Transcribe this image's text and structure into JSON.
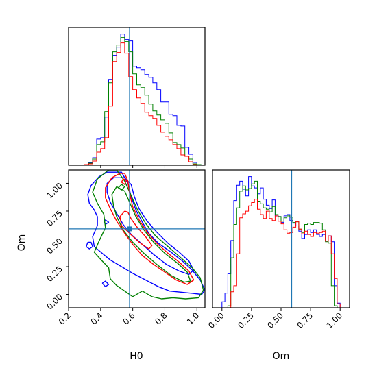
{
  "chart_data": {
    "type": "corner",
    "parameters": [
      "H0",
      "Om"
    ],
    "truths": {
      "H0": 0.58,
      "Om": 0.59
    },
    "truth_color": "#1f77b4",
    "series": [
      {
        "color": "#0000ff"
      },
      {
        "color": "#008000"
      },
      {
        "color": "#ff0000"
      }
    ],
    "hist_H0": {
      "type": "step-histogram",
      "edges": [
        0.3,
        0.325,
        0.35,
        0.375,
        0.4,
        0.425,
        0.45,
        0.475,
        0.5,
        0.525,
        0.55,
        0.575,
        0.6,
        0.625,
        0.65,
        0.675,
        0.7,
        0.725,
        0.75,
        0.775,
        0.8,
        0.825,
        0.85,
        0.875,
        0.9,
        0.925,
        0.95,
        0.975,
        1.0,
        1.025
      ],
      "series_counts": [
        [
          1,
          4,
          11,
          38,
          40,
          70,
          125,
          160,
          172,
          191,
          183,
          181,
          144,
          142,
          139,
          132,
          128,
          120,
          110,
          92,
          92,
          74,
          72,
          58,
          57,
          26,
          16,
          4,
          1
        ],
        [
          1,
          3,
          9,
          30,
          34,
          78,
          120,
          165,
          175,
          186,
          180,
          165,
          133,
          117,
          113,
          102,
          89,
          79,
          73,
          66,
          61,
          47,
          33,
          30,
          25,
          13,
          9,
          2,
          1
        ],
        [
          1,
          2,
          6,
          19,
          24,
          40,
          86,
          151,
          164,
          178,
          163,
          129,
          110,
          98,
          90,
          77,
          72,
          68,
          58,
          48,
          42,
          37,
          30,
          24,
          15,
          13,
          5,
          1,
          0
        ]
      ],
      "xlim": [
        0.2,
        1.05
      ],
      "x_ticks": [
        0.4,
        0.6,
        0.8,
        1.0
      ]
    },
    "hist_Om": {
      "type": "step-histogram",
      "edges": [
        0.0,
        0.025,
        0.05,
        0.075,
        0.1,
        0.125,
        0.15,
        0.175,
        0.2,
        0.225,
        0.25,
        0.275,
        0.3,
        0.325,
        0.35,
        0.375,
        0.4,
        0.425,
        0.45,
        0.475,
        0.5,
        0.525,
        0.55,
        0.575,
        0.6,
        0.625,
        0.65,
        0.675,
        0.7,
        0.725,
        0.75,
        0.775,
        0.8,
        0.825,
        0.85,
        0.875,
        0.9,
        0.925,
        0.95,
        0.975,
        1.0,
        1.025,
        1.05
      ],
      "series_counts": [
        [
          9,
          22,
          51,
          101,
          161,
          184,
          190,
          178,
          168,
          197,
          183,
          180,
          171,
          180,
          163,
          154,
          149,
          162,
          138,
          137,
          128,
          138,
          140,
          131,
          127,
          123,
          115,
          104,
          110,
          117,
          113,
          117,
          110,
          107,
          110,
          100,
          108,
          99,
          33,
          7,
          0,
          0
        ],
        [
          0,
          0,
          3,
          75,
          125,
          150,
          175,
          183,
          177,
          179,
          186,
          190,
          160,
          156,
          150,
          148,
          144,
          152,
          140,
          137,
          130,
          135,
          138,
          136,
          128,
          129,
          118,
          113,
          125,
          127,
          125,
          128,
          128,
          127,
          117,
          99,
          97,
          33,
          3,
          0,
          0,
          0
        ],
        [
          0,
          0,
          0,
          24,
          33,
          81,
          135,
          141,
          145,
          153,
          158,
          163,
          148,
          140,
          134,
          145,
          134,
          131,
          138,
          130,
          126,
          117,
          112,
          113,
          121,
          129,
          118,
          111,
          115,
          110,
          107,
          113,
          112,
          113,
          115,
          100,
          108,
          81,
          44,
          6,
          0,
          0
        ]
      ],
      "xlim": [
        -0.08,
        1.08
      ],
      "x_ticks": [
        0.0,
        0.25,
        0.5,
        0.75,
        1.0
      ],
      "x_tick_labels": [
        "0.00",
        "0.25",
        "0.50",
        "0.75",
        "1.00"
      ]
    },
    "joint": {
      "type": "2d-contour",
      "x_param": "H0",
      "y_param": "Om",
      "xlim": [
        0.2,
        1.05
      ],
      "ylim": [
        -0.12,
        1.12
      ],
      "x_ticks": [
        0.2,
        0.4,
        0.6,
        0.8,
        1.0
      ],
      "x_tick_labels": [
        "0.2",
        "0.4",
        "0.6",
        "0.8",
        "1.0"
      ],
      "y_ticks": [
        0.0,
        0.25,
        0.5,
        0.75,
        1.0
      ],
      "y_tick_labels": [
        "0.00",
        "0.25",
        "0.50",
        "0.75",
        "1.00"
      ],
      "contours": [
        {
          "series": 0,
          "points": [
            [
              0.44,
              1.1
            ],
            [
              0.39,
              1.06
            ],
            [
              0.34,
              0.98
            ],
            [
              0.32,
              0.9
            ],
            [
              0.33,
              0.82
            ],
            [
              0.36,
              0.76
            ],
            [
              0.38,
              0.7
            ],
            [
              0.38,
              0.62
            ],
            [
              0.35,
              0.52
            ],
            [
              0.36,
              0.43
            ],
            [
              0.41,
              0.37
            ],
            [
              0.46,
              0.31
            ],
            [
              0.53,
              0.25
            ],
            [
              0.6,
              0.19
            ],
            [
              0.68,
              0.13
            ],
            [
              0.76,
              0.07
            ],
            [
              0.83,
              0.03
            ],
            [
              0.9,
              0.02
            ],
            [
              0.97,
              0.01
            ],
            [
              1.03,
              0.0
            ],
            [
              1.05,
              0.04
            ],
            [
              1.02,
              0.13
            ],
            [
              0.97,
              0.22
            ],
            [
              0.91,
              0.3
            ],
            [
              0.84,
              0.38
            ],
            [
              0.76,
              0.46
            ],
            [
              0.7,
              0.55
            ],
            [
              0.66,
              0.65
            ],
            [
              0.62,
              0.76
            ],
            [
              0.59,
              0.88
            ],
            [
              0.57,
              1.0
            ],
            [
              0.53,
              1.1
            ],
            [
              0.44,
              1.1
            ]
          ]
        },
        {
          "series": 0,
          "points": [
            [
              0.48,
              1.05
            ],
            [
              0.44,
              1.0
            ],
            [
              0.44,
              0.92
            ],
            [
              0.46,
              0.83
            ],
            [
              0.5,
              0.73
            ],
            [
              0.54,
              0.63
            ],
            [
              0.59,
              0.54
            ],
            [
              0.66,
              0.45
            ],
            [
              0.73,
              0.36
            ],
            [
              0.81,
              0.27
            ],
            [
              0.89,
              0.21
            ],
            [
              0.95,
              0.18
            ],
            [
              0.98,
              0.22
            ],
            [
              0.95,
              0.3
            ],
            [
              0.89,
              0.38
            ],
            [
              0.82,
              0.46
            ],
            [
              0.75,
              0.56
            ],
            [
              0.69,
              0.66
            ],
            [
              0.64,
              0.77
            ],
            [
              0.61,
              0.88
            ],
            [
              0.59,
              0.99
            ],
            [
              0.55,
              1.05
            ],
            [
              0.48,
              1.05
            ]
          ]
        },
        {
          "series": 0,
          "points": [
            [
              0.32,
              0.47
            ],
            [
              0.31,
              0.43
            ],
            [
              0.33,
              0.41
            ],
            [
              0.35,
              0.43
            ],
            [
              0.34,
              0.47
            ],
            [
              0.32,
              0.47
            ]
          ]
        },
        {
          "series": 0,
          "points": [
            [
              0.41,
              0.1
            ],
            [
              0.43,
              0.12
            ],
            [
              0.45,
              0.09
            ],
            [
              0.43,
              0.07
            ],
            [
              0.41,
              0.1
            ]
          ]
        },
        {
          "series": 0,
          "points": [
            [
              0.42,
              0.66
            ],
            [
              0.43,
              0.63
            ],
            [
              0.45,
              0.65
            ],
            [
              0.43,
              0.67
            ],
            [
              0.42,
              0.66
            ]
          ]
        },
        {
          "series": 1,
          "points": [
            [
              0.45,
              1.12
            ],
            [
              0.38,
              1.04
            ],
            [
              0.35,
              0.92
            ],
            [
              0.38,
              0.82
            ],
            [
              0.42,
              0.72
            ],
            [
              0.43,
              0.6
            ],
            [
              0.39,
              0.48
            ],
            [
              0.36,
              0.38
            ],
            [
              0.41,
              0.3
            ],
            [
              0.45,
              0.24
            ],
            [
              0.46,
              0.14
            ],
            [
              0.5,
              0.08
            ],
            [
              0.55,
              0.03
            ],
            [
              0.6,
              -0.02
            ],
            [
              0.66,
              0.03
            ],
            [
              0.72,
              -0.02
            ],
            [
              0.78,
              -0.04
            ],
            [
              0.85,
              -0.03
            ],
            [
              0.93,
              -0.04
            ],
            [
              1.01,
              -0.03
            ],
            [
              1.04,
              0.04
            ],
            [
              1.02,
              0.15
            ],
            [
              0.97,
              0.24
            ],
            [
              0.9,
              0.33
            ],
            [
              0.82,
              0.43
            ],
            [
              0.74,
              0.53
            ],
            [
              0.68,
              0.64
            ],
            [
              0.63,
              0.76
            ],
            [
              0.59,
              0.89
            ],
            [
              0.55,
              1.02
            ],
            [
              0.5,
              1.12
            ],
            [
              0.45,
              1.12
            ]
          ]
        },
        {
          "series": 1,
          "points": [
            [
              0.5,
              0.97
            ],
            [
              0.47,
              0.9
            ],
            [
              0.48,
              0.8
            ],
            [
              0.5,
              0.7
            ],
            [
              0.54,
              0.58
            ],
            [
              0.6,
              0.47
            ],
            [
              0.67,
              0.37
            ],
            [
              0.75,
              0.27
            ],
            [
              0.84,
              0.17
            ],
            [
              0.92,
              0.11
            ],
            [
              0.96,
              0.12
            ],
            [
              0.94,
              0.2
            ],
            [
              0.88,
              0.28
            ],
            [
              0.8,
              0.37
            ],
            [
              0.73,
              0.47
            ],
            [
              0.67,
              0.58
            ],
            [
              0.62,
              0.7
            ],
            [
              0.58,
              0.83
            ],
            [
              0.55,
              0.93
            ],
            [
              0.5,
              0.97
            ]
          ]
        },
        {
          "series": 1,
          "points": [
            [
              0.53,
              0.99
            ],
            [
              0.51,
              0.96
            ],
            [
              0.53,
              0.94
            ],
            [
              0.55,
              0.97
            ],
            [
              0.53,
              0.99
            ]
          ]
        },
        {
          "series": 2,
          "points": [
            [
              0.52,
              1.09
            ],
            [
              0.47,
              1.05
            ],
            [
              0.43,
              0.96
            ],
            [
              0.43,
              0.87
            ],
            [
              0.46,
              0.77
            ],
            [
              0.5,
              0.66
            ],
            [
              0.55,
              0.55
            ],
            [
              0.6,
              0.45
            ],
            [
              0.66,
              0.35
            ],
            [
              0.73,
              0.27
            ],
            [
              0.8,
              0.2
            ],
            [
              0.87,
              0.13
            ],
            [
              0.94,
              0.09
            ],
            [
              0.98,
              0.13
            ],
            [
              0.95,
              0.21
            ],
            [
              0.89,
              0.29
            ],
            [
              0.82,
              0.37
            ],
            [
              0.75,
              0.46
            ],
            [
              0.69,
              0.56
            ],
            [
              0.64,
              0.67
            ],
            [
              0.6,
              0.79
            ],
            [
              0.58,
              0.91
            ],
            [
              0.57,
              1.02
            ],
            [
              0.55,
              1.09
            ],
            [
              0.52,
              1.09
            ]
          ]
        },
        {
          "series": 2,
          "points": [
            [
              0.55,
              0.75
            ],
            [
              0.52,
              0.7
            ],
            [
              0.53,
              0.62
            ],
            [
              0.58,
              0.55
            ],
            [
              0.64,
              0.47
            ],
            [
              0.7,
              0.41
            ],
            [
              0.72,
              0.44
            ],
            [
              0.68,
              0.52
            ],
            [
              0.63,
              0.6
            ],
            [
              0.59,
              0.68
            ],
            [
              0.57,
              0.74
            ],
            [
              0.55,
              0.75
            ]
          ]
        },
        {
          "series": 2,
          "points": [
            [
              0.54,
              1.04
            ],
            [
              0.53,
              1.01
            ],
            [
              0.55,
              0.99
            ],
            [
              0.56,
              1.03
            ],
            [
              0.54,
              1.04
            ]
          ]
        }
      ]
    },
    "ylabel_joint": "Om",
    "xlabel_joint": "H0",
    "xlabel_Om": "Om"
  }
}
